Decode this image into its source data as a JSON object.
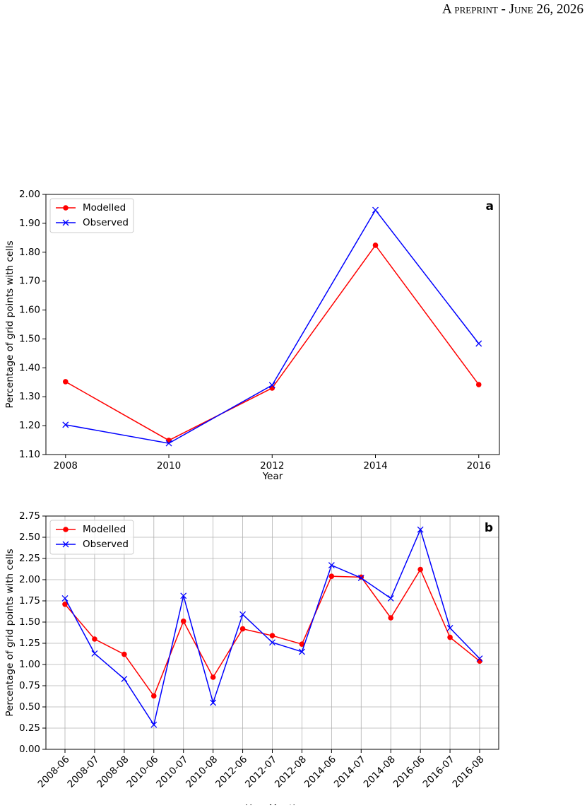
{
  "header": {
    "text": "A preprint - June 26, 2026"
  },
  "chart_data": [
    {
      "type": "line",
      "panel_label": "a",
      "xlabel": "Year",
      "ylabel": "Percentage of grid points with cells",
      "x": [
        2008,
        2010,
        2012,
        2014,
        2016
      ],
      "series": [
        {
          "name": "Modelled",
          "color": "#ff0000",
          "marker": "o",
          "values": [
            1.352,
            1.149,
            1.33,
            1.824,
            1.342
          ]
        },
        {
          "name": "Observed",
          "color": "#0000ff",
          "marker": "x",
          "values": [
            1.203,
            1.139,
            1.34,
            1.946,
            1.484
          ]
        }
      ],
      "xlim": [
        2007.62,
        2016.4
      ],
      "xticks": [
        2008,
        2010,
        2012,
        2014,
        2016
      ],
      "ylim": [
        1.1,
        2.0
      ],
      "yticks": [
        {
          "value": 1.1,
          "label": "1.10"
        },
        {
          "value": 1.2,
          "label": "1.20"
        },
        {
          "value": 1.3,
          "label": "1.30"
        },
        {
          "value": 1.4,
          "label": "1.40"
        },
        {
          "value": 1.5,
          "label": "1.50"
        },
        {
          "value": 1.6,
          "label": "1.60"
        },
        {
          "value": 1.7,
          "label": "1.70"
        },
        {
          "value": 1.8,
          "label": "1.80"
        },
        {
          "value": 1.9,
          "label": "1.90"
        },
        {
          "value": 2.0,
          "label": "2.00"
        }
      ],
      "grid": false,
      "legend": "upper left"
    },
    {
      "type": "line",
      "panel_label": "b",
      "xlabel": "Year-Month",
      "ylabel": "Percentage of grid points with cells",
      "categories": [
        "2008-06",
        "2008-07",
        "2008-08",
        "2010-06",
        "2010-07",
        "2010-08",
        "2012-06",
        "2012-07",
        "2012-08",
        "2014-06",
        "2014-07",
        "2014-08",
        "2016-06",
        "2016-07",
        "2016-08"
      ],
      "series": [
        {
          "name": "Modelled",
          "color": "#ff0000",
          "marker": "o",
          "values": [
            1.71,
            1.3,
            1.12,
            0.63,
            1.51,
            0.85,
            1.42,
            1.34,
            1.24,
            2.04,
            2.03,
            1.55,
            2.12,
            1.32,
            1.04
          ]
        },
        {
          "name": "Observed",
          "color": "#0000ff",
          "marker": "x",
          "values": [
            1.78,
            1.13,
            0.83,
            0.29,
            1.81,
            0.55,
            1.59,
            1.26,
            1.15,
            2.17,
            2.02,
            1.78,
            2.59,
            1.43,
            1.07
          ]
        }
      ],
      "ylim": [
        0,
        2.75
      ],
      "yticks": [
        {
          "value": 0,
          "label": "0.00"
        },
        {
          "value": 0.25,
          "label": "0.25"
        },
        {
          "value": 0.5,
          "label": "0.50"
        },
        {
          "value": 0.75,
          "label": "0.75"
        },
        {
          "value": 1,
          "label": "1.00"
        },
        {
          "value": 1.25,
          "label": "1.25"
        },
        {
          "value": 1.5,
          "label": "1.50"
        },
        {
          "value": 1.75,
          "label": "1.75"
        },
        {
          "value": 2,
          "label": "2.00"
        },
        {
          "value": 2.25,
          "label": "2.25"
        },
        {
          "value": 2.5,
          "label": "2.50"
        },
        {
          "value": 2.75,
          "label": "2.75"
        }
      ],
      "grid": true,
      "legend": "upper left"
    }
  ]
}
